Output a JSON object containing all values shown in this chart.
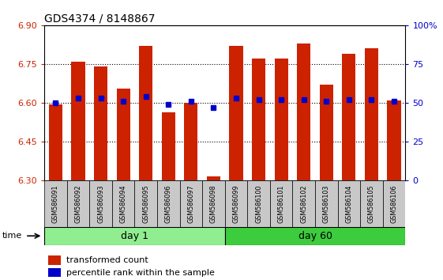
{
  "title": "GDS4374 / 8148867",
  "samples": [
    "GSM586091",
    "GSM586092",
    "GSM586093",
    "GSM586094",
    "GSM586095",
    "GSM586096",
    "GSM586097",
    "GSM586098",
    "GSM586099",
    "GSM586100",
    "GSM586101",
    "GSM586102",
    "GSM586103",
    "GSM586104",
    "GSM586105",
    "GSM586106"
  ],
  "transformed_counts": [
    6.595,
    6.76,
    6.74,
    6.655,
    6.82,
    6.565,
    6.6,
    6.315,
    6.82,
    6.77,
    6.77,
    6.83,
    6.67,
    6.79,
    6.81,
    6.61
  ],
  "percentile_ranks": [
    50,
    53,
    53,
    51,
    54,
    49,
    51,
    47,
    53,
    52,
    52,
    52,
    51,
    52,
    52,
    51
  ],
  "y_min": 6.3,
  "y_max": 6.9,
  "y_ticks_left": [
    6.3,
    6.45,
    6.6,
    6.75,
    6.9
  ],
  "y_ticks_right": [
    0,
    25,
    50,
    75,
    100
  ],
  "right_y_labels": [
    "0",
    "25",
    "50",
    "75",
    "100%"
  ],
  "groups": [
    {
      "label": "day 1",
      "start": 0,
      "end": 7,
      "color": "#90EE90"
    },
    {
      "label": "day 60",
      "start": 8,
      "end": 15,
      "color": "#3DCC3D"
    }
  ],
  "bar_color": "#CC2200",
  "blue_marker_color": "#0000CC",
  "bar_width": 0.6,
  "tick_area_color": "#C8C8C8",
  "time_label": "time",
  "legend_red": "transformed count",
  "legend_blue": "percentile rank within the sample",
  "gridlines": [
    6.45,
    6.6,
    6.75
  ]
}
